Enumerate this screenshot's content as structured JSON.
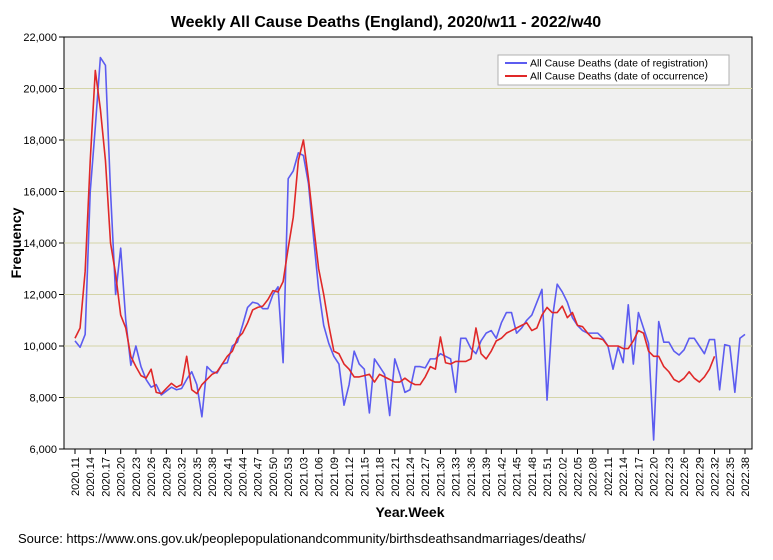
{
  "chart_data": {
    "type": "line",
    "title": "Weekly All Cause Deaths (England), 2020/w11 - 2022/w40",
    "xlabel": "Year.Week",
    "ylabel": "Frequency",
    "ylim": [
      6000,
      22000
    ],
    "yticks": [
      6000,
      8000,
      10000,
      12000,
      14000,
      16000,
      18000,
      20000,
      22000
    ],
    "ytick_labels": [
      "6,000",
      "8,000",
      "10,000",
      "12,000",
      "14,000",
      "16,000",
      "18,000",
      "20,000",
      "22,000"
    ],
    "xtick_labels": [
      "2020.11",
      "2020.14",
      "2020.17",
      "2020.20",
      "2020.23",
      "2020.26",
      "2020.29",
      "2020.32",
      "2020.35",
      "2020.38",
      "2020.41",
      "2020.44",
      "2020.47",
      "2020.50",
      "2020.53",
      "2021.03",
      "2021.06",
      "2021.09",
      "2021.12",
      "2021.15",
      "2021.18",
      "2021.21",
      "2021.24",
      "2021.27",
      "2021.30",
      "2021.33",
      "2021.36",
      "2021.39",
      "2021.42",
      "2021.45",
      "2021.48",
      "2021.51",
      "2022.02",
      "2022.05",
      "2022.08",
      "2022.11",
      "2022.14",
      "2022.17",
      "2022.20",
      "2022.23",
      "2022.26",
      "2022.29",
      "2022.32",
      "2022.35",
      "2022.38"
    ],
    "xtick_step": 3,
    "grid": "horizontal",
    "legend_position": "top-right",
    "series": [
      {
        "name": "All Cause Deaths (date of registration)",
        "color": "#5c5cf0",
        "values": [
          10200,
          9950,
          10450,
          16000,
          18500,
          21200,
          20900,
          16000,
          12000,
          13800,
          11000,
          9250,
          10000,
          9200,
          8700,
          8400,
          8500,
          8100,
          8250,
          8400,
          8300,
          8350,
          8700,
          9000,
          8500,
          7250,
          9200,
          9000,
          8950,
          9300,
          9350,
          10000,
          10150,
          10800,
          11500,
          11700,
          11650,
          11450,
          11450,
          12000,
          12300,
          9350,
          16500,
          16800,
          17500,
          17400,
          16300,
          14200,
          12200,
          10800,
          10100,
          9600,
          9300,
          7700,
          8500,
          9800,
          9300,
          9100,
          7400,
          9500,
          9200,
          8900,
          7300,
          9500,
          8900,
          8200,
          8300,
          9200,
          9200,
          9150,
          9500,
          9500,
          9700,
          9600,
          9500,
          8200,
          10300,
          10300,
          9900,
          9700,
          10200,
          10500,
          10600,
          10300,
          10900,
          11300,
          11300,
          10500,
          10700,
          11000,
          11200,
          11700,
          12200,
          7900,
          11000,
          12400,
          12100,
          11700,
          11100,
          10800,
          10600,
          10500,
          10500,
          10500,
          10300,
          10000,
          9100,
          9950,
          9350,
          11600,
          9300,
          11300,
          10700,
          10100,
          6350,
          10950,
          10150,
          10150,
          9800,
          9650,
          9850,
          10300,
          10300,
          10000,
          9700,
          10250,
          10250,
          8300,
          10050,
          10000,
          8200,
          10300,
          10450
        ]
      },
      {
        "name": "All Cause Deaths (date of occurrence)",
        "color": "#e02828",
        "values": [
          10300,
          10700,
          12900,
          17200,
          20700,
          19200,
          17200,
          14000,
          12800,
          11200,
          10700,
          9600,
          9200,
          8850,
          8750,
          9100,
          8200,
          8150,
          8350,
          8550,
          8400,
          8500,
          9600,
          8300,
          8150,
          8500,
          8700,
          8900,
          9000,
          9300,
          9600,
          9800,
          10300,
          10500,
          10900,
          11400,
          11500,
          11550,
          11800,
          12150,
          12100,
          12500,
          13800,
          15000,
          17200,
          18000,
          16500,
          14700,
          13000,
          12000,
          10800,
          9800,
          9700,
          9300,
          9100,
          8800,
          8800,
          8850,
          8900,
          8600,
          8900,
          8800,
          8700,
          8600,
          8600,
          8750,
          8600,
          8500,
          8500,
          8800,
          9200,
          9100,
          10350,
          9350,
          9300,
          9400,
          9400,
          9400,
          9500,
          10700,
          9700,
          9500,
          9800,
          10200,
          10300,
          10500,
          10600,
          10700,
          10800,
          10900,
          10600,
          10700,
          11200,
          11500,
          11300,
          11300,
          11550,
          11100,
          11300,
          10800,
          10750,
          10500,
          10300,
          10300,
          10250,
          10000,
          10000,
          10000,
          9900,
          9900,
          10200,
          10600,
          10500,
          9800,
          9600,
          9600,
          9200,
          9000,
          8700,
          8600,
          8750,
          9000,
          8750,
          8600,
          8800,
          9100,
          9600
        ]
      }
    ],
    "source_text": "Source:  https://www.ons.gov.uk/peoplepopulationandcommunity/birthsdeathsandmarriages/deaths/"
  }
}
